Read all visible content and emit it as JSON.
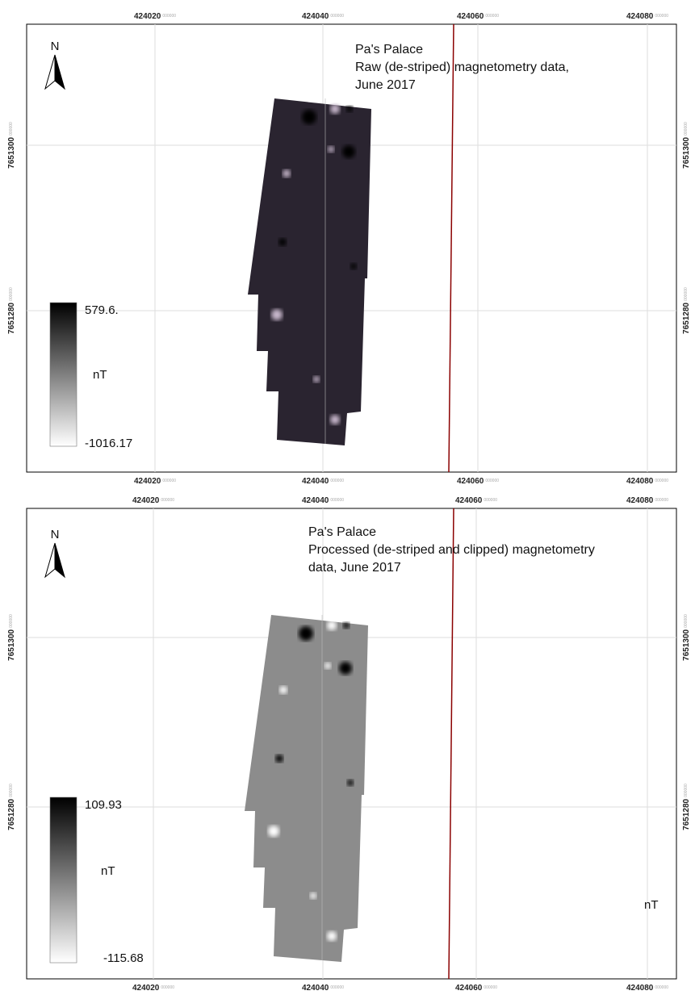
{
  "panels": [
    {
      "x_ticks": [
        {
          "label": "424020",
          "suffix": "000000"
        },
        {
          "label": "424040",
          "suffix": "000000"
        },
        {
          "label": "424060",
          "suffix": "000000"
        },
        {
          "label": "424080",
          "suffix": "000000"
        }
      ],
      "y_ticks": [
        {
          "label": "7651300",
          "suffix": "000000"
        },
        {
          "label": "7651280",
          "suffix": "000000"
        }
      ],
      "north": "N",
      "title": [
        "Pa's Palace",
        "Raw (de-striped) magnetometry data,",
        "June 2017"
      ],
      "legend": {
        "max": "579.6.",
        "unit": "nT",
        "min": "-1016.17"
      }
    },
    {
      "x_ticks": [
        {
          "label": "424020",
          "suffix": "000000"
        },
        {
          "label": "424040",
          "suffix": "000000"
        },
        {
          "label": "424060",
          "suffix": "000000"
        },
        {
          "label": "424080",
          "suffix": "000000"
        }
      ],
      "y_ticks": [
        {
          "label": "7651300",
          "suffix": "000000"
        },
        {
          "label": "7651280",
          "suffix": "000000"
        }
      ],
      "north": "N",
      "title": [
        "Pa's Palace",
        "Processed (de-striped and clipped) magnetometry",
        "data, June 2017"
      ],
      "legend": {
        "max": "109.93",
        "unit": "nT",
        "min": "-115.68"
      },
      "extra_unit": "nT"
    }
  ]
}
